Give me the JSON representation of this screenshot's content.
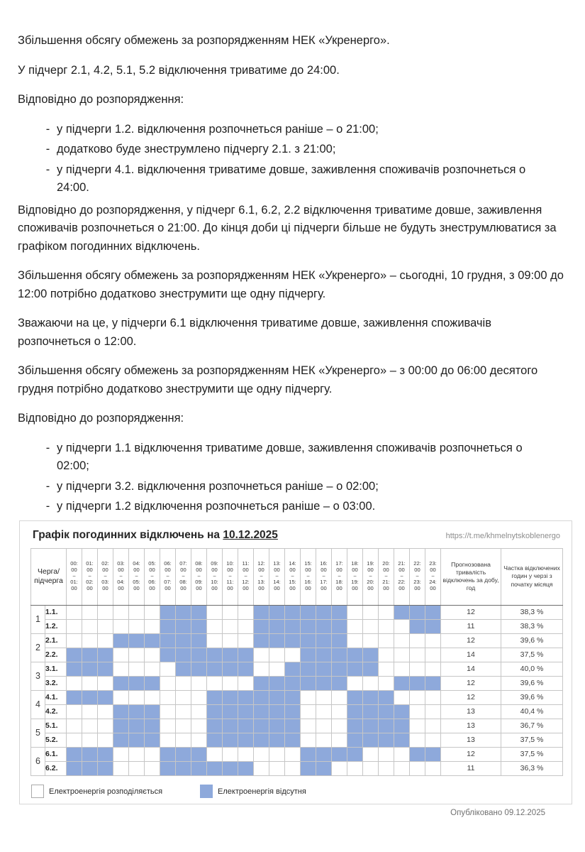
{
  "document": {
    "dash": "-",
    "p1": "Збільшення обсягу обмежень за розпорядженням НЕК «Укренерго».",
    "p2": "У підчерг 2.1, 4.2, 5.1, 5.2 відключення триватиме до 24:00.",
    "p3": "Відповідно до розпорядження:",
    "list1": [
      "у підчерги 1.2. відключення розпочнеться раніше – о 21:00;",
      "додатково буде знеструмлено підчергу 2.1. з 21:00;",
      "у підчерги 4.1. відключення триватиме довше, заживлення споживачів розпочнеться о 24:00."
    ],
    "p4": "Відповідно до розпорядження, у підчерг 6.1, 6.2, 2.2 відключення триватиме довше, заживлення споживачів розпочнеться о 21:00. До кінця доби ці підчерги більше не будуть знеструмлюватися за графіком погодинних відключень.",
    "p5": "Збільшення обсягу обмежень за розпорядженням НЕК «Укренерго» – сьогодні, 10 грудня, з 09:00 до 12:00 потрібно додатково знеструмити ще одну підчергу.",
    "p6": "Зважаючи на це, у підчерги 6.1 відключення триватиме довше, заживлення споживачів розпочнеться о 12:00.",
    "p7": "Збільшення обсягу обмежень за розпорядженням НЕК «Укренерго» – з 00:00 до 06:00 десятого грудня потрібно додатково знеструмити ще одну підчергу.",
    "p8": "Відповідно до розпорядження:",
    "list2": [
      "у підчерги 1.1 відключення триватиме довше, заживлення споживачів розпочнеться о 02:00;",
      "у підчерги 3.2. відключення розпочнеться раніше – о 02:00;",
      "у підчерги 1.2 відключення розпочнеться раніше – о 03:00."
    ]
  },
  "chart": {
    "type": "heatmap-schedule",
    "title_prefix": "Графік погодинних відключень на ",
    "title_date": "10.12.2025",
    "url": "https://t.me/khmelnytskoblenergo",
    "published": "Опубліковано 09.12.2025",
    "colors": {
      "power_off": "#8EA9DB",
      "power_on": "#FFFFFF"
    },
    "header": {
      "queue_lines": [
        "Черга/",
        "підчерга"
      ],
      "hour_dash": "–",
      "hours": [
        [
          "00:00",
          "01:00"
        ],
        [
          "01:00",
          "02:00"
        ],
        [
          "02:00",
          "03:00"
        ],
        [
          "03:00",
          "04:00"
        ],
        [
          "04:00",
          "05:00"
        ],
        [
          "05:00",
          "06:00"
        ],
        [
          "06:00",
          "07:00"
        ],
        [
          "07:00",
          "08:00"
        ],
        [
          "08:00",
          "09:00"
        ],
        [
          "09:00",
          "10:00"
        ],
        [
          "10:00",
          "11:00"
        ],
        [
          "11:00",
          "12:00"
        ],
        [
          "12:00",
          "13:00"
        ],
        [
          "13:00",
          "14:00"
        ],
        [
          "14:00",
          "15:00"
        ],
        [
          "15:00",
          "16:00"
        ],
        [
          "16:00",
          "17:00"
        ],
        [
          "17:00",
          "18:00"
        ],
        [
          "18:00",
          "19:00"
        ],
        [
          "19:00",
          "20:00"
        ],
        [
          "20:00",
          "21:00"
        ],
        [
          "21:00",
          "22:00"
        ],
        [
          "22:00",
          "23:00"
        ],
        [
          "23:00",
          "24:00"
        ]
      ],
      "duration_label": "Прогнозована тривалість відключень за добу, год",
      "share_label": "Частка відключених годин у черзі з початку місяця"
    },
    "groups": [
      "1",
      "2",
      "3",
      "4",
      "5",
      "6"
    ],
    "rows": [
      {
        "sub": "1.1.",
        "off_hours": [
          6,
          7,
          8,
          12,
          13,
          14,
          15,
          16,
          17,
          21,
          22,
          23
        ],
        "duration": "12",
        "share": "38,3 %"
      },
      {
        "sub": "1.2.",
        "off_hours": [
          6,
          7,
          8,
          12,
          13,
          14,
          15,
          16,
          17,
          22,
          23
        ],
        "duration": "11",
        "share": "38,3 %"
      },
      {
        "sub": "2.1.",
        "off_hours": [
          3,
          4,
          5,
          6,
          7,
          8,
          12,
          13,
          14,
          15,
          16,
          17
        ],
        "duration": "12",
        "share": "39,6 %"
      },
      {
        "sub": "2.2.",
        "off_hours": [
          0,
          1,
          2,
          6,
          7,
          8,
          9,
          10,
          11,
          15,
          16,
          17,
          18,
          19
        ],
        "duration": "14",
        "share": "37,5 %"
      },
      {
        "sub": "3.1.",
        "off_hours": [
          0,
          1,
          2,
          7,
          8,
          9,
          10,
          11,
          14,
          15,
          16,
          17,
          18,
          19
        ],
        "duration": "14",
        "share": "40,0 %"
      },
      {
        "sub": "3.2.",
        "off_hours": [
          3,
          4,
          5,
          12,
          13,
          14,
          15,
          16,
          17,
          21,
          22,
          23
        ],
        "duration": "12",
        "share": "39,6 %"
      },
      {
        "sub": "4.1.",
        "off_hours": [
          0,
          1,
          2,
          9,
          10,
          11,
          12,
          13,
          14,
          18,
          19,
          20
        ],
        "duration": "12",
        "share": "39,6 %"
      },
      {
        "sub": "4.2.",
        "off_hours": [
          3,
          4,
          5,
          9,
          10,
          11,
          12,
          13,
          14,
          18,
          19,
          20,
          21
        ],
        "duration": "13",
        "share": "40,4 %"
      },
      {
        "sub": "5.1.",
        "off_hours": [
          3,
          4,
          5,
          9,
          10,
          11,
          12,
          13,
          14,
          18,
          19,
          20,
          21
        ],
        "duration": "13",
        "share": "36,7 %"
      },
      {
        "sub": "5.2.",
        "off_hours": [
          3,
          4,
          5,
          9,
          10,
          11,
          12,
          13,
          14,
          18,
          19,
          20,
          21
        ],
        "duration": "13",
        "share": "37,5 %"
      },
      {
        "sub": "6.1.",
        "off_hours": [
          0,
          1,
          2,
          6,
          7,
          8,
          15,
          16,
          17,
          18,
          22,
          23
        ],
        "duration": "12",
        "share": "37,5 %"
      },
      {
        "sub": "6.2.",
        "off_hours": [
          0,
          1,
          2,
          6,
          7,
          8,
          9,
          10,
          11,
          15,
          16
        ],
        "duration": "11",
        "share": "36,3 %"
      }
    ],
    "legend": [
      {
        "type": "power_on",
        "label": "Електроенергія розподіляється"
      },
      {
        "type": "power_off",
        "label": "Електроенергія відсутня"
      }
    ]
  }
}
